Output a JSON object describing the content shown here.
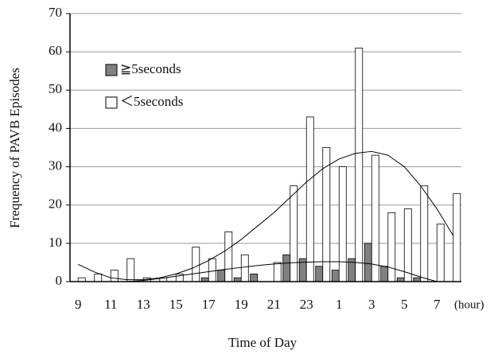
{
  "chart_data": {
    "type": "bar",
    "y_label": "Frequency of  PAVB Episodes",
    "x_label": "Time of Day",
    "x_unit": "(hour)",
    "categories": [
      "9",
      null,
      "11",
      null,
      "13",
      null,
      "15",
      null,
      "17",
      null,
      "19",
      null,
      "21",
      null,
      "23",
      null,
      "1",
      null,
      "3",
      null,
      "5",
      null,
      "7",
      null
    ],
    "series": [
      {
        "name": "≧5seconds",
        "color": "#808080",
        "values": [
          0,
          0,
          0,
          0,
          0,
          0,
          0,
          0,
          1,
          3,
          1,
          2,
          0,
          7,
          6,
          4,
          3,
          6,
          10,
          4,
          1,
          1,
          0,
          0
        ]
      },
      {
        "name": "＜5seconds",
        "color": "#ffffff",
        "values": [
          1,
          2,
          3,
          6,
          1,
          1,
          2,
          9,
          6,
          13,
          7,
          0,
          5,
          25,
          43,
          35,
          30,
          61,
          33,
          18,
          19,
          25,
          15,
          23
        ]
      }
    ],
    "trendlines": [
      {
        "values": [
          null,
          null,
          null,
          0,
          0.3,
          0.8,
          1.4,
          2,
          2.6,
          3.2,
          3.7,
          4.2,
          4.6,
          4.9,
          5.1,
          5.2,
          5.2,
          5,
          4.6,
          3.8,
          2.6,
          1.2,
          0,
          null
        ]
      },
      {
        "values": [
          4.5,
          2.5,
          1,
          0.5,
          0.5,
          1,
          2,
          3.5,
          5.5,
          8,
          11,
          14.5,
          18,
          22,
          26,
          29.5,
          32,
          33.5,
          34,
          33,
          30,
          25,
          19,
          12
        ]
      }
    ],
    "ylim": [
      0,
      70
    ],
    "yticks": [
      0,
      10,
      20,
      30,
      40,
      50,
      60,
      70
    ],
    "grid": true
  }
}
